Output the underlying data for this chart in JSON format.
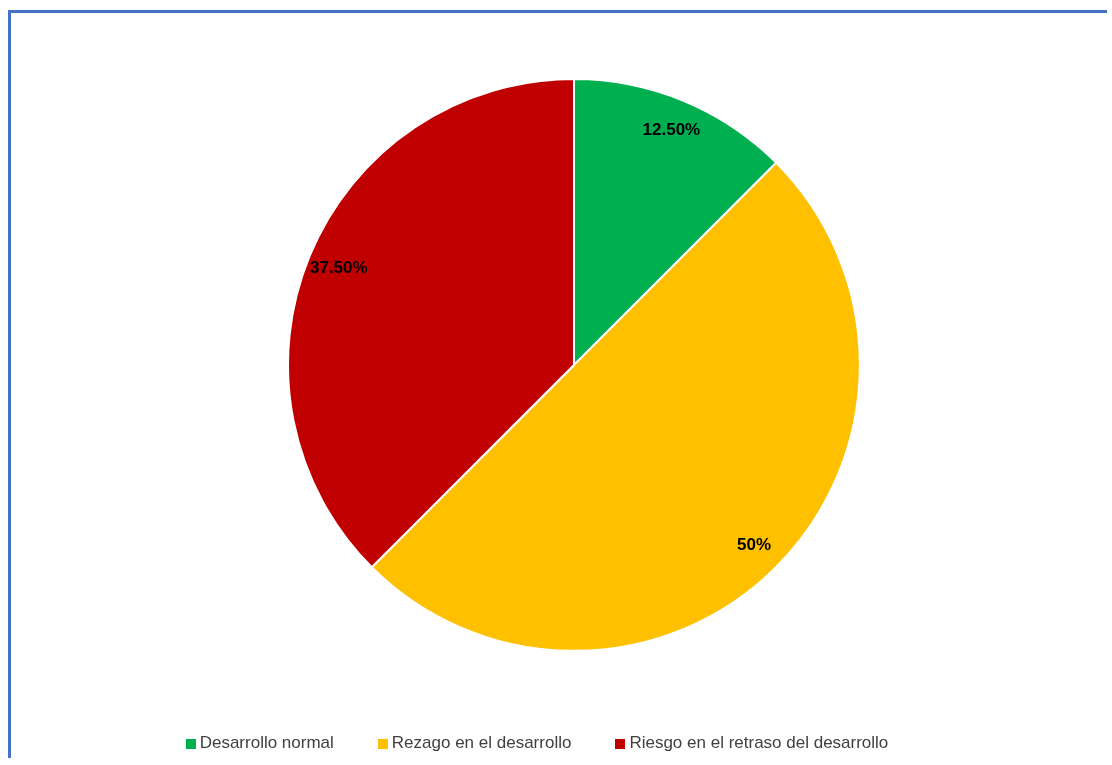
{
  "chart_data": {
    "type": "pie",
    "categories": [
      "Desarrollo normal",
      "Rezago en el desarrollo",
      "Riesgo en el retraso del desarrollo"
    ],
    "values": [
      12.5,
      50,
      37.5
    ],
    "colors": [
      "#00b050",
      "#ffc000",
      "#c00000"
    ],
    "value_labels": [
      "12.50%",
      "50%",
      "37.50%"
    ],
    "legend": "bottom"
  }
}
